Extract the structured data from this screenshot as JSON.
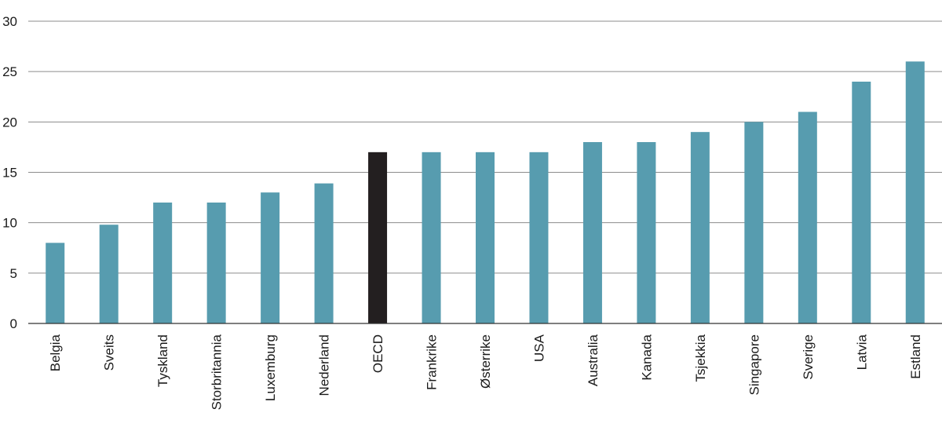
{
  "chart_data": {
    "type": "bar",
    "title": "",
    "xlabel": "",
    "ylabel": "",
    "categories": [
      "Belgia",
      "Sveits",
      "Tyskland",
      "Storbritannia",
      "Luxemburg",
      "Nederland",
      "OECD",
      "Frankrike",
      "Østerrike",
      "USA",
      "Australia",
      "Kanada",
      "Tsjekkia",
      "Singapore",
      "Sverige",
      "Latvia",
      "Estland"
    ],
    "values": [
      8,
      9.8,
      12,
      12,
      13,
      13.9,
      17,
      17,
      17,
      17,
      18,
      18,
      19,
      20,
      21,
      24,
      26
    ],
    "highlight": [
      "OECD"
    ],
    "ylim": [
      0,
      30
    ],
    "yticks": [
      0,
      5,
      10,
      15,
      20,
      25,
      30
    ],
    "grid": true,
    "legend": "none",
    "colors": {
      "bar": "#579CAF",
      "highlight": "#231F20",
      "grid": "#8C8C8C"
    }
  }
}
